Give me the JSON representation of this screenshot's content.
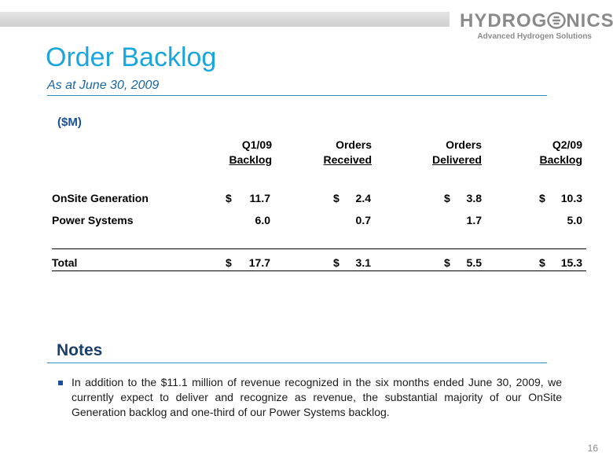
{
  "header": {
    "logo_text": "HYDROGENICS",
    "logo_prefix": "HYDROG",
    "logo_suffix": "NICS",
    "logo_tagline": "Advanced Hydrogen Solutions",
    "colors": {
      "logo_gray": "#8a8a8a",
      "title_blue": "#1aa6dc",
      "subtitle_blue": "#1a64a0"
    }
  },
  "slide": {
    "title": "Order Backlog",
    "subtitle": "As at  June 30, 2009",
    "units": "($M)",
    "page_number": "16"
  },
  "table": {
    "columns": [
      {
        "line1": "Q1/09",
        "line2": "Backlog"
      },
      {
        "line1": "Orders",
        "line2": "Received"
      },
      {
        "line1": "Orders",
        "line2": "Delivered"
      },
      {
        "line1": "Q2/09",
        "line2": "Backlog"
      }
    ],
    "rows": [
      {
        "label": "OnSite Generation",
        "cells": [
          {
            "dollar": "$",
            "value": "11.7"
          },
          {
            "dollar": "$",
            "value": "2.4"
          },
          {
            "dollar": "$",
            "value": "3.8"
          },
          {
            "dollar": "$",
            "value": "10.3"
          }
        ]
      },
      {
        "label": "Power Systems",
        "cells": [
          {
            "dollar": "",
            "value": "6.0"
          },
          {
            "dollar": "",
            "value": "0.7"
          },
          {
            "dollar": "",
            "value": "1.7"
          },
          {
            "dollar": "",
            "value": "5.0"
          }
        ]
      },
      {
        "label": "Total",
        "cells": [
          {
            "dollar": "$",
            "value": "17.7"
          },
          {
            "dollar": "$",
            "value": "3.1"
          },
          {
            "dollar": "$",
            "value": "5.5"
          },
          {
            "dollar": "$",
            "value": "15.3"
          }
        ]
      }
    ]
  },
  "notes": {
    "title": "Notes",
    "items": [
      "In addition to the $11.1 million of revenue recognized in the six months ended June 30, 2009, we currently expect to deliver and recognize as revenue, the substantial majority of our OnSite Generation backlog and one-third of our Power Systems backlog."
    ]
  }
}
